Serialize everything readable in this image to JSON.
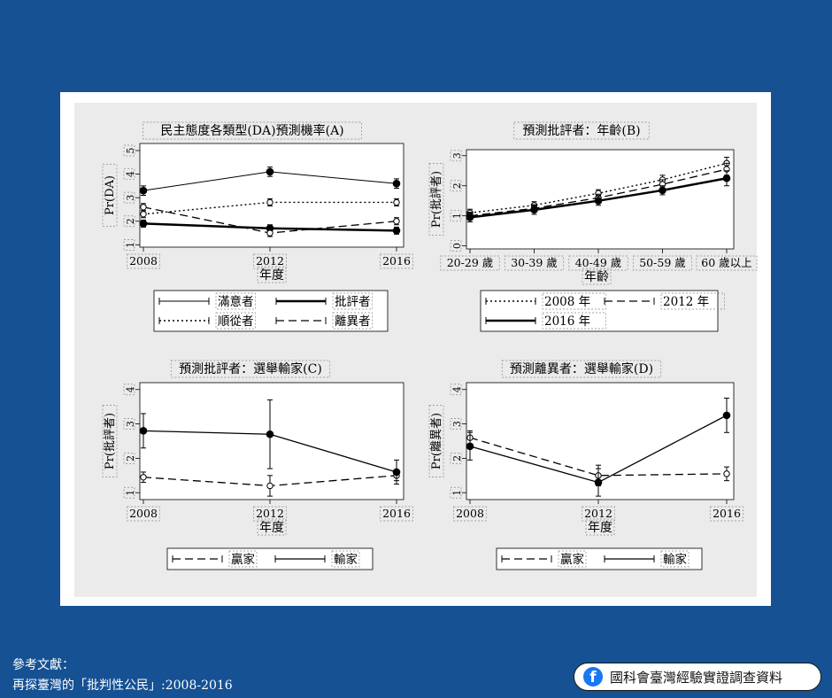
{
  "colors": {
    "background": "#155193",
    "panel": "#ffffff",
    "plot_area": "#ebebeb",
    "facebook": "#1877f2"
  },
  "footer": {
    "reference_heading": "參考文獻：",
    "reference_text": "再探臺灣的「批判性公民」:2008-2016",
    "brand_text": "國科會臺灣經驗實證調查資料",
    "brand_icon": "facebook-icon"
  },
  "chart_data": [
    {
      "id": "A",
      "type": "line",
      "title": "民主態度各類型(DA)預測機率(A)",
      "xlabel": "年度",
      "ylabel": "Pr(DA)",
      "categories": [
        "2008",
        "2012",
        "2016"
      ],
      "yticks": [
        "1",
        "2",
        "3",
        "4",
        "5"
      ],
      "ylim": [
        0.9,
        5.3
      ],
      "series": [
        {
          "name": "滿意者",
          "style": "thin-solid",
          "values": [
            3.3,
            4.1,
            3.6
          ],
          "err": [
            0.2,
            0.2,
            0.2
          ]
        },
        {
          "name": "批評者",
          "style": "thick-solid",
          "values": [
            1.9,
            1.7,
            1.6
          ],
          "err": [
            0.15,
            0.15,
            0.15
          ]
        },
        {
          "name": "順從者",
          "style": "dotted",
          "values": [
            2.3,
            2.8,
            2.8
          ],
          "err": [
            0.15,
            0.15,
            0.15
          ]
        },
        {
          "name": "離異者",
          "style": "dashed",
          "values": [
            2.6,
            1.5,
            2.0
          ],
          "err": [
            0.15,
            0.15,
            0.15
          ]
        }
      ]
    },
    {
      "id": "B",
      "type": "line",
      "title": "預測批評者：年齡(B)",
      "xlabel": "年齡",
      "ylabel": "Pr(批評者)",
      "categories": [
        "20-29 歲",
        "30-39 歲",
        "40-49 歲",
        "50-59 歲",
        "60 歲以上"
      ],
      "yticks": [
        "0",
        "1",
        "2",
        "3"
      ],
      "ylim": [
        -0.1,
        3.2
      ],
      "series": [
        {
          "name": "2008 年",
          "style": "dotted",
          "values": [
            1.1,
            1.35,
            1.75,
            2.2,
            2.75
          ],
          "err": [
            0.12,
            0.12,
            0.12,
            0.15,
            0.2
          ]
        },
        {
          "name": "2012 年",
          "style": "dashed",
          "values": [
            1.0,
            1.25,
            1.6,
            2.05,
            2.55
          ],
          "err": [
            0.12,
            0.12,
            0.12,
            0.15,
            0.2
          ]
        },
        {
          "name": "2016 年",
          "style": "thick-solid",
          "values": [
            0.95,
            1.2,
            1.5,
            1.85,
            2.25
          ],
          "err": [
            0.15,
            0.15,
            0.15,
            0.15,
            0.25
          ]
        }
      ]
    },
    {
      "id": "C",
      "type": "line",
      "title": "預測批評者：選舉輸家(C)",
      "xlabel": "年度",
      "ylabel": "Pr(批評者)",
      "categories": [
        "2008",
        "2012",
        "2016"
      ],
      "yticks": [
        "1",
        "2",
        "3",
        "4"
      ],
      "ylim": [
        0.8,
        4.2
      ],
      "series": [
        {
          "name": "贏家",
          "style": "dashed",
          "values": [
            1.45,
            1.2,
            1.5
          ],
          "err": [
            0.15,
            0.3,
            0.15
          ]
        },
        {
          "name": "輸家",
          "style": "solid",
          "values": [
            2.8,
            2.7,
            1.6
          ],
          "err": [
            0.5,
            1.0,
            0.35
          ]
        }
      ]
    },
    {
      "id": "D",
      "type": "line",
      "title": "預測離異者：選舉輸家(D)",
      "xlabel": "年度",
      "ylabel": "Pr(離異者)",
      "categories": [
        "2008",
        "2012",
        "2016"
      ],
      "yticks": [
        "1",
        "2",
        "3",
        "4"
      ],
      "ylim": [
        0.8,
        4.2
      ],
      "series": [
        {
          "name": "贏家",
          "style": "dashed",
          "values": [
            2.6,
            1.5,
            1.55
          ],
          "err": [
            0.2,
            0.3,
            0.2
          ]
        },
        {
          "name": "輸家",
          "style": "solid",
          "values": [
            2.35,
            1.3,
            3.25
          ],
          "err": [
            0.4,
            0.4,
            0.5
          ]
        }
      ]
    }
  ]
}
